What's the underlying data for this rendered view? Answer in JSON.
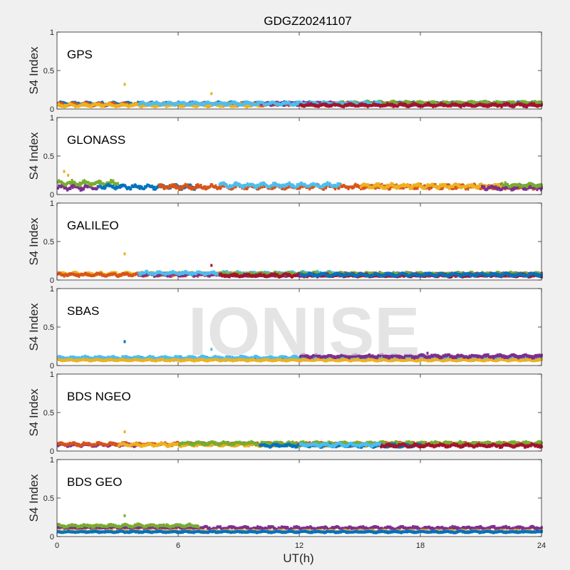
{
  "figure": {
    "title": "GDGZ20241107",
    "xlabel": "UT(h)",
    "ylabel": "S4 Index",
    "watermark": "IONISE",
    "xticks": [
      "0",
      "6",
      "12",
      "18",
      "24"
    ],
    "yticks": [
      "0",
      "0.5",
      "1"
    ]
  },
  "chart_data": [
    {
      "type": "scatter",
      "title": "GPS",
      "xlabel": "UT(h)",
      "ylabel": "S4 Index",
      "xlim": [
        0,
        24
      ],
      "ylim": [
        0,
        1
      ],
      "grid": false,
      "series": [
        {
          "color": "#0072bd",
          "baseline": 0.07,
          "noise": 0.02,
          "x_range": [
            0,
            24
          ]
        },
        {
          "color": "#d95319",
          "baseline": 0.06,
          "noise": 0.02,
          "x_range": [
            0,
            24
          ]
        },
        {
          "color": "#edb120",
          "baseline": 0.05,
          "noise": 0.02,
          "x_range": [
            0,
            10
          ]
        },
        {
          "color": "#7e2f8e",
          "baseline": 0.07,
          "noise": 0.02,
          "x_range": [
            10,
            24
          ]
        },
        {
          "color": "#77ac30",
          "baseline": 0.08,
          "noise": 0.02,
          "x_range": [
            14,
            24
          ]
        },
        {
          "color": "#4dbeee",
          "baseline": 0.07,
          "noise": 0.02,
          "x_range": [
            4,
            16
          ]
        },
        {
          "color": "#a2142f",
          "baseline": 0.05,
          "noise": 0.02,
          "x_range": [
            12,
            24
          ]
        }
      ],
      "outliers": [
        {
          "x": 3.3,
          "y": 0.32,
          "color": "#edb120"
        },
        {
          "x": 7.6,
          "y": 0.2,
          "color": "#edb120"
        }
      ]
    },
    {
      "type": "scatter",
      "title": "GLONASS",
      "xlabel": "UT(h)",
      "ylabel": "S4 Index",
      "xlim": [
        0,
        24
      ],
      "ylim": [
        0,
        1
      ],
      "grid": false,
      "series": [
        {
          "color": "#7e2f8e",
          "baseline": 0.09,
          "noise": 0.03,
          "x_range": [
            0,
            2
          ]
        },
        {
          "color": "#77ac30",
          "baseline": 0.15,
          "noise": 0.03,
          "x_range": [
            0,
            3
          ]
        },
        {
          "color": "#0072bd",
          "baseline": 0.1,
          "noise": 0.03,
          "x_range": [
            2,
            7
          ]
        },
        {
          "color": "#d95319",
          "baseline": 0.1,
          "noise": 0.03,
          "x_range": [
            5,
            24
          ]
        },
        {
          "color": "#4dbeee",
          "baseline": 0.12,
          "noise": 0.03,
          "x_range": [
            8,
            14
          ]
        },
        {
          "color": "#edb120",
          "baseline": 0.11,
          "noise": 0.03,
          "x_range": [
            15,
            22
          ]
        },
        {
          "color": "#7e2f8e",
          "baseline": 0.09,
          "noise": 0.03,
          "x_range": [
            21,
            24
          ]
        },
        {
          "color": "#77ac30",
          "baseline": 0.12,
          "noise": 0.03,
          "x_range": [
            22,
            24
          ]
        }
      ],
      "outliers": [
        {
          "x": 0.3,
          "y": 0.3,
          "color": "#edb120"
        },
        {
          "x": 0.5,
          "y": 0.25,
          "color": "#edb120"
        }
      ]
    },
    {
      "type": "scatter",
      "title": "GALILEO",
      "xlabel": "UT(h)",
      "ylabel": "S4 Index",
      "xlim": [
        0,
        24
      ],
      "ylim": [
        0,
        1
      ],
      "grid": false,
      "series": [
        {
          "color": "#edb120",
          "baseline": 0.08,
          "noise": 0.02,
          "x_range": [
            0,
            10
          ]
        },
        {
          "color": "#d95319",
          "baseline": 0.07,
          "noise": 0.02,
          "x_range": [
            0,
            24
          ]
        },
        {
          "color": "#7e2f8e",
          "baseline": 0.07,
          "noise": 0.02,
          "x_range": [
            4,
            24
          ]
        },
        {
          "color": "#4dbeee",
          "baseline": 0.09,
          "noise": 0.02,
          "x_range": [
            4,
            14
          ]
        },
        {
          "color": "#77ac30",
          "baseline": 0.08,
          "noise": 0.02,
          "x_range": [
            8,
            24
          ]
        },
        {
          "color": "#a2142f",
          "baseline": 0.06,
          "noise": 0.02,
          "x_range": [
            8,
            24
          ]
        },
        {
          "color": "#0072bd",
          "baseline": 0.07,
          "noise": 0.02,
          "x_range": [
            12,
            24
          ]
        }
      ],
      "outliers": [
        {
          "x": 3.3,
          "y": 0.34,
          "color": "#edb120"
        },
        {
          "x": 7.6,
          "y": 0.19,
          "color": "#a2142f"
        }
      ]
    },
    {
      "type": "scatter",
      "title": "SBAS",
      "xlabel": "UT(h)",
      "ylabel": "S4 Index",
      "xlim": [
        0,
        24
      ],
      "ylim": [
        0,
        1
      ],
      "grid": false,
      "series": [
        {
          "color": "#0072bd",
          "baseline": 0.09,
          "noise": 0.02,
          "x_range": [
            0,
            24
          ]
        },
        {
          "color": "#4dbeee",
          "baseline": 0.1,
          "noise": 0.02,
          "x_range": [
            0,
            24
          ]
        },
        {
          "color": "#edb120",
          "baseline": 0.07,
          "noise": 0.01,
          "x_range": [
            0,
            24
          ]
        },
        {
          "color": "#7e2f8e",
          "baseline": 0.12,
          "noise": 0.02,
          "x_range": [
            12,
            24
          ]
        }
      ],
      "outliers": [
        {
          "x": 3.3,
          "y": 0.31,
          "color": "#0072bd"
        },
        {
          "x": 7.6,
          "y": 0.21,
          "color": "#4dbeee"
        },
        {
          "x": 18.3,
          "y": 0.16,
          "color": "#7e2f8e"
        }
      ]
    },
    {
      "type": "scatter",
      "title": "BDS NGEO",
      "xlabel": "UT(h)",
      "ylabel": "S4 Index",
      "xlim": [
        0,
        24
      ],
      "ylim": [
        0,
        1
      ],
      "grid": false,
      "series": [
        {
          "color": "#7e2f8e",
          "baseline": 0.08,
          "noise": 0.02,
          "x_range": [
            0,
            4
          ]
        },
        {
          "color": "#d95319",
          "baseline": 0.09,
          "noise": 0.02,
          "x_range": [
            0,
            24
          ]
        },
        {
          "color": "#edb120",
          "baseline": 0.08,
          "noise": 0.02,
          "x_range": [
            3,
            16
          ]
        },
        {
          "color": "#77ac30",
          "baseline": 0.1,
          "noise": 0.02,
          "x_range": [
            6,
            24
          ]
        },
        {
          "color": "#0072bd",
          "baseline": 0.07,
          "noise": 0.02,
          "x_range": [
            10,
            18
          ]
        },
        {
          "color": "#4dbeee",
          "baseline": 0.08,
          "noise": 0.02,
          "x_range": [
            12,
            16
          ]
        },
        {
          "color": "#a2142f",
          "baseline": 0.07,
          "noise": 0.02,
          "x_range": [
            16,
            24
          ]
        }
      ],
      "outliers": [
        {
          "x": 3.3,
          "y": 0.25,
          "color": "#edb120"
        }
      ]
    },
    {
      "type": "scatter",
      "title": "BDS GEO",
      "xlabel": "UT(h)",
      "ylabel": "S4 Index",
      "xlim": [
        0,
        24
      ],
      "ylim": [
        0,
        1
      ],
      "grid": false,
      "series": [
        {
          "color": "#7e2f8e",
          "baseline": 0.11,
          "noise": 0.02,
          "x_range": [
            0,
            24
          ]
        },
        {
          "color": "#77ac30",
          "baseline": 0.14,
          "noise": 0.02,
          "x_range": [
            0,
            7
          ]
        },
        {
          "color": "#edb120",
          "baseline": 0.07,
          "noise": 0.01,
          "x_range": [
            0,
            24
          ]
        },
        {
          "color": "#0072bd",
          "baseline": 0.06,
          "noise": 0.01,
          "x_range": [
            0,
            24
          ]
        }
      ],
      "outliers": [
        {
          "x": 3.3,
          "y": 0.27,
          "color": "#77ac30"
        }
      ]
    }
  ]
}
